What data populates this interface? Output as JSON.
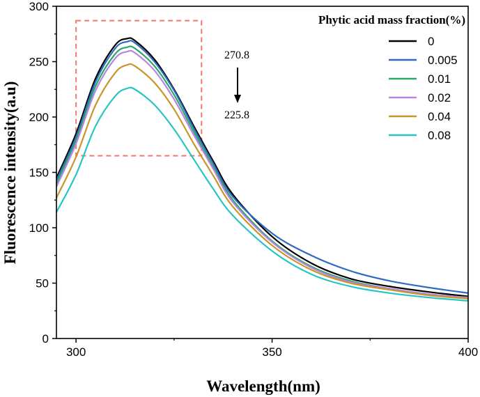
{
  "chart_data": {
    "type": "line",
    "title": "",
    "xlabel": "Wavelength(nm)",
    "ylabel": "Fluorescence intensity(a.u)",
    "xlim": [
      295,
      400
    ],
    "ylim": [
      0,
      300
    ],
    "x_ticks": [
      300,
      350,
      400
    ],
    "y_ticks": [
      0,
      50,
      100,
      150,
      200,
      250,
      300
    ],
    "legend_title": "Phytic acid mass fraction(%)",
    "legend_position": "top-right",
    "annotations": {
      "top_value": "270.8",
      "bottom_value": "225.8"
    },
    "highlight_box": {
      "x": [
        300,
        332
      ],
      "y": [
        165,
        287
      ]
    },
    "x": [
      295,
      300,
      305,
      310,
      313,
      315,
      320,
      325,
      330,
      335,
      340,
      350,
      360,
      370,
      380,
      390,
      400
    ],
    "series": [
      {
        "name": "0",
        "color": "#000000",
        "values": [
          145,
          185,
          235,
          265,
          270.8,
          269,
          252,
          225,
          192,
          160,
          130,
          92,
          68,
          54,
          47,
          42,
          38
        ]
      },
      {
        "name": "0.005",
        "color": "#2e6bbf",
        "values": [
          143,
          182,
          232,
          262,
          268,
          267,
          250,
          224,
          190,
          158,
          128,
          95,
          75,
          61,
          52,
          46,
          41
        ]
      },
      {
        "name": "0.01",
        "color": "#2ea86a",
        "values": [
          140,
          179,
          228,
          257,
          263,
          262,
          246,
          220,
          187,
          155,
          125,
          88,
          65,
          52,
          45,
          40,
          37
        ]
      },
      {
        "name": "0.02",
        "color": "#b884e0",
        "values": [
          137,
          176,
          224,
          253,
          259,
          258,
          242,
          216,
          184,
          153,
          123,
          87,
          64,
          51,
          45,
          40,
          37
        ]
      },
      {
        "name": "0.04",
        "color": "#c9952a",
        "values": [
          127,
          164,
          211,
          240,
          247,
          246,
          231,
          207,
          176,
          147,
          119,
          84,
          62,
          50,
          44,
          39,
          36
        ]
      },
      {
        "name": "0.08",
        "color": "#27c4c4",
        "values": [
          114,
          148,
          192,
          219,
          225.8,
          225,
          211,
          189,
          162,
          135,
          111,
          79,
          58,
          47,
          41,
          37,
          34
        ]
      }
    ]
  }
}
